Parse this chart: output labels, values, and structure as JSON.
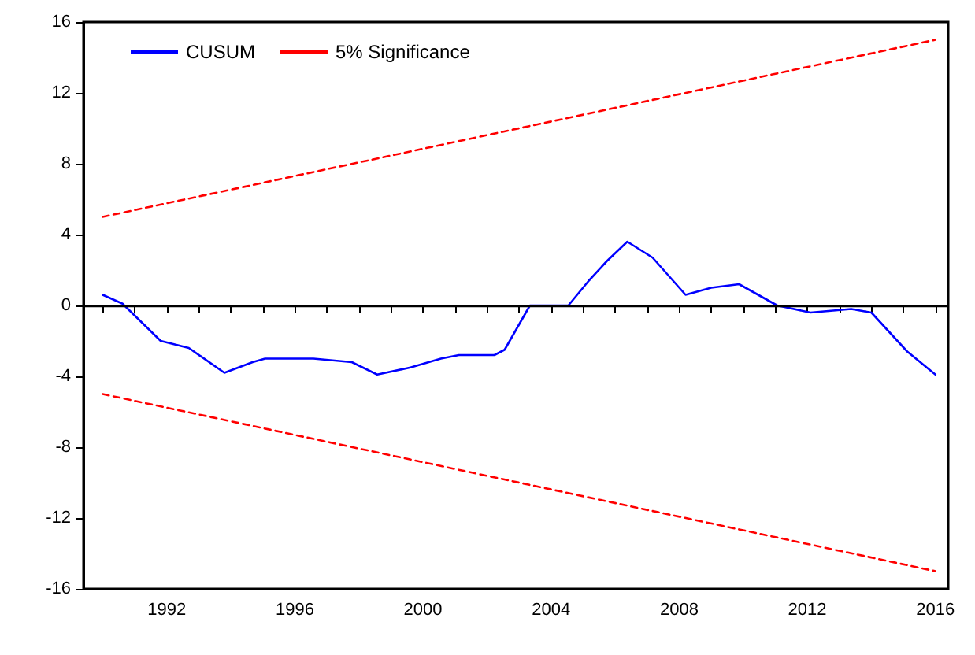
{
  "chart_data": {
    "type": "line",
    "xlim": [
      1989.4,
      2016.4
    ],
    "xticks": [
      {
        "value": 1990,
        "label": null
      },
      {
        "value": 1991,
        "label": null
      },
      1992,
      {
        "value": 1993,
        "label": null
      },
      {
        "value": 1994,
        "label": null
      },
      {
        "value": 1995,
        "label": null
      },
      1996,
      {
        "value": 1997,
        "label": null
      },
      {
        "value": 1998,
        "label": null
      },
      {
        "value": 1999,
        "label": null
      },
      2000,
      {
        "value": 2001,
        "label": null
      },
      {
        "value": 2002,
        "label": null
      },
      {
        "value": 2003,
        "label": null
      },
      2004,
      {
        "value": 2005,
        "label": null
      },
      {
        "value": 2006,
        "label": null
      },
      {
        "value": 2007,
        "label": null
      },
      2008,
      {
        "value": 2009,
        "label": null
      },
      {
        "value": 2010,
        "label": null
      },
      {
        "value": 2011,
        "label": null
      },
      2012,
      {
        "value": 2013,
        "label": null
      },
      {
        "value": 2014,
        "label": null
      },
      {
        "value": 2015,
        "label": null
      },
      2016
    ],
    "ylim": [
      -16,
      16
    ],
    "yticks": [
      -16,
      -12,
      -8,
      -4,
      0,
      4,
      8,
      12,
      16
    ],
    "series": [
      {
        "name": "CUSUM",
        "color": "#0000ff",
        "line_style": "solid",
        "x": [
          1990.0,
          1990.62,
          1991.81,
          1992.69,
          1993.8,
          1994.68,
          1995.07,
          1996.58,
          1997.78,
          1998.57,
          1999.61,
          2000.56,
          2001.12,
          2002.23,
          2002.55,
          2003.34,
          2004.54,
          2005.18,
          2005.74,
          2006.38,
          2007.17,
          2008.2,
          2009.0,
          2009.87,
          2011.06,
          2012.1,
          2013.37,
          2014.0,
          2015.12,
          2016.0
        ],
        "values": [
          0.6,
          0.1,
          -2.0,
          -2.4,
          -3.8,
          -3.2,
          -3.0,
          -3.0,
          -3.2,
          -3.9,
          -3.5,
          -3.0,
          -2.8,
          -2.8,
          -2.5,
          0,
          0,
          1.4,
          2.5,
          3.6,
          2.7,
          0.6,
          1.0,
          1.2,
          0.0,
          -0.4,
          -0.2,
          -0.4,
          -2.6,
          -3.9
        ]
      },
      {
        "name": "5% Significance",
        "color": "#ff0000",
        "line_style": "dashed",
        "x": [
          1990,
          2016
        ],
        "values": [
          5,
          15
        ]
      },
      {
        "color": "#ff0000",
        "line_style": "dashed",
        "x": [
          1990,
          2016
        ],
        "values": [
          -5,
          -15
        ]
      }
    ],
    "ref_lines": [
      {
        "axis": "y",
        "value": 0,
        "color": "#000000"
      }
    ],
    "legend": "top left",
    "grid": false,
    "marker": "none"
  }
}
